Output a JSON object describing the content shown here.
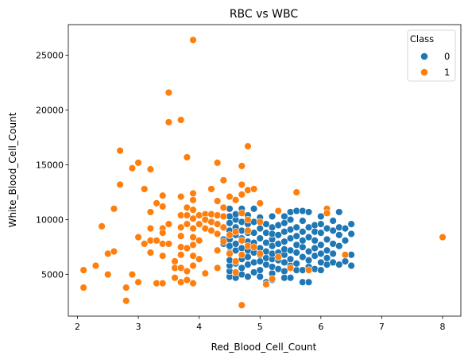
{
  "chart_data": {
    "type": "scatter",
    "title": "RBC vs WBC",
    "xlabel": "Red_Blood_Cell_Count",
    "ylabel": "White_Blood_Cell_Count",
    "xlim": [
      1.85,
      8.3
    ],
    "ylim": [
      1200,
      27800
    ],
    "xticks": [
      2,
      3,
      4,
      5,
      6,
      7,
      8
    ],
    "yticks": [
      5000,
      10000,
      15000,
      20000,
      25000
    ],
    "grid": false,
    "legend": {
      "title": "Class",
      "placement": "top-right",
      "entries": [
        {
          "label": "0",
          "color": "#1f77b4"
        },
        {
          "label": "1",
          "color": "#ff7f0e"
        }
      ]
    },
    "series": [
      {
        "class": "0",
        "color": "#1f77b4",
        "points": [
          [
            4.4,
            7800
          ],
          [
            4.4,
            8200
          ],
          [
            4.5,
            4800
          ],
          [
            4.5,
            5300
          ],
          [
            4.5,
            5800
          ],
          [
            4.5,
            6300
          ],
          [
            4.5,
            7000
          ],
          [
            4.5,
            7600
          ],
          [
            4.5,
            8200
          ],
          [
            4.5,
            9000
          ],
          [
            4.5,
            9700
          ],
          [
            4.5,
            10300
          ],
          [
            4.5,
            11000
          ],
          [
            4.6,
            4700
          ],
          [
            4.6,
            6000
          ],
          [
            4.6,
            7200
          ],
          [
            4.6,
            7800
          ],
          [
            4.6,
            8600
          ],
          [
            4.6,
            9300
          ],
          [
            4.6,
            10000
          ],
          [
            4.6,
            10500
          ],
          [
            4.7,
            5000
          ],
          [
            4.7,
            5600
          ],
          [
            4.7,
            6400
          ],
          [
            4.7,
            7400
          ],
          [
            4.7,
            8300
          ],
          [
            4.7,
            9000
          ],
          [
            4.7,
            9800
          ],
          [
            4.7,
            11000
          ],
          [
            4.8,
            4800
          ],
          [
            4.8,
            5900
          ],
          [
            4.8,
            6600
          ],
          [
            4.8,
            7200
          ],
          [
            4.8,
            8000
          ],
          [
            4.8,
            8800
          ],
          [
            4.8,
            9600
          ],
          [
            4.8,
            10400
          ],
          [
            4.9,
            5200
          ],
          [
            4.9,
            6100
          ],
          [
            4.9,
            7000
          ],
          [
            4.9,
            7900
          ],
          [
            4.9,
            8800
          ],
          [
            4.9,
            9800
          ],
          [
            4.9,
            11000
          ],
          [
            5.0,
            4800
          ],
          [
            5.0,
            5400
          ],
          [
            5.0,
            6200
          ],
          [
            5.0,
            6800
          ],
          [
            5.0,
            7400
          ],
          [
            5.0,
            8300
          ],
          [
            5.0,
            9200
          ],
          [
            5.0,
            10200
          ],
          [
            5.1,
            4300
          ],
          [
            5.1,
            5900
          ],
          [
            5.1,
            6500
          ],
          [
            5.1,
            7100
          ],
          [
            5.1,
            7900
          ],
          [
            5.1,
            8800
          ],
          [
            5.1,
            9600
          ],
          [
            5.2,
            4500
          ],
          [
            5.2,
            5100
          ],
          [
            5.2,
            5700
          ],
          [
            5.2,
            6400
          ],
          [
            5.2,
            6900
          ],
          [
            5.2,
            7600
          ],
          [
            5.2,
            8200
          ],
          [
            5.2,
            8700
          ],
          [
            5.2,
            9300
          ],
          [
            5.2,
            10300
          ],
          [
            5.3,
            5500
          ],
          [
            5.3,
            6300
          ],
          [
            5.3,
            7000
          ],
          [
            5.3,
            7800
          ],
          [
            5.3,
            8600
          ],
          [
            5.3,
            9500
          ],
          [
            5.3,
            10800
          ],
          [
            5.4,
            4700
          ],
          [
            5.4,
            5300
          ],
          [
            5.4,
            6100
          ],
          [
            5.4,
            6800
          ],
          [
            5.4,
            7300
          ],
          [
            5.4,
            8000
          ],
          [
            5.4,
            8900
          ],
          [
            5.4,
            9700
          ],
          [
            5.4,
            10300
          ],
          [
            5.5,
            4700
          ],
          [
            5.5,
            5800
          ],
          [
            5.5,
            6400
          ],
          [
            5.5,
            7200
          ],
          [
            5.5,
            8300
          ],
          [
            5.5,
            9100
          ],
          [
            5.5,
            10000
          ],
          [
            5.5,
            10700
          ],
          [
            5.6,
            5400
          ],
          [
            5.6,
            6000
          ],
          [
            5.6,
            7000
          ],
          [
            5.6,
            7700
          ],
          [
            5.6,
            8500
          ],
          [
            5.6,
            9300
          ],
          [
            5.6,
            10800
          ],
          [
            5.7,
            4300
          ],
          [
            5.7,
            5400
          ],
          [
            5.7,
            6600
          ],
          [
            5.7,
            7500
          ],
          [
            5.7,
            8100
          ],
          [
            5.7,
            8900
          ],
          [
            5.7,
            9900
          ],
          [
            5.7,
            10800
          ],
          [
            5.8,
            4300
          ],
          [
            5.8,
            5700
          ],
          [
            5.8,
            6300
          ],
          [
            5.8,
            7100
          ],
          [
            5.8,
            8400
          ],
          [
            5.8,
            9300
          ],
          [
            5.8,
            10700
          ],
          [
            5.9,
            5500
          ],
          [
            5.9,
            6700
          ],
          [
            5.9,
            7400
          ],
          [
            5.9,
            8100
          ],
          [
            5.9,
            8900
          ],
          [
            5.9,
            9500
          ],
          [
            6.0,
            5400
          ],
          [
            6.0,
            6100
          ],
          [
            6.0,
            6900
          ],
          [
            6.0,
            7700
          ],
          [
            6.0,
            8800
          ],
          [
            6.0,
            9600
          ],
          [
            6.0,
            10300
          ],
          [
            6.1,
            5900
          ],
          [
            6.1,
            6500
          ],
          [
            6.1,
            7200
          ],
          [
            6.1,
            8200
          ],
          [
            6.1,
            9200
          ],
          [
            6.1,
            10600
          ],
          [
            6.2,
            6100
          ],
          [
            6.2,
            6900
          ],
          [
            6.2,
            7800
          ],
          [
            6.2,
            9000
          ],
          [
            6.2,
            9900
          ],
          [
            6.3,
            5900
          ],
          [
            6.3,
            7600
          ],
          [
            6.3,
            8600
          ],
          [
            6.3,
            9300
          ],
          [
            6.3,
            10700
          ],
          [
            6.4,
            6200
          ],
          [
            6.4,
            8100
          ],
          [
            6.4,
            9200
          ],
          [
            6.5,
            5800
          ],
          [
            6.5,
            6800
          ],
          [
            6.5,
            8700
          ],
          [
            6.5,
            9600
          ]
        ]
      },
      {
        "class": "1",
        "color": "#ff7f0e",
        "points": [
          [
            2.1,
            5400
          ],
          [
            2.1,
            3800
          ],
          [
            2.3,
            5800
          ],
          [
            2.4,
            9400
          ],
          [
            2.5,
            6900
          ],
          [
            2.5,
            5000
          ],
          [
            2.6,
            11000
          ],
          [
            2.6,
            7100
          ],
          [
            2.7,
            16300
          ],
          [
            2.7,
            13200
          ],
          [
            2.8,
            3800
          ],
          [
            2.8,
            2600
          ],
          [
            2.9,
            14700
          ],
          [
            2.9,
            5000
          ],
          [
            3.0,
            15200
          ],
          [
            3.0,
            8400
          ],
          [
            3.0,
            4300
          ],
          [
            3.1,
            12800
          ],
          [
            3.1,
            7800
          ],
          [
            3.2,
            14600
          ],
          [
            3.2,
            10700
          ],
          [
            3.2,
            9200
          ],
          [
            3.2,
            8100
          ],
          [
            3.2,
            7000
          ],
          [
            3.3,
            11500
          ],
          [
            3.3,
            8100
          ],
          [
            3.3,
            4200
          ],
          [
            3.4,
            12200
          ],
          [
            3.4,
            11200
          ],
          [
            3.4,
            9200
          ],
          [
            3.4,
            8800
          ],
          [
            3.4,
            7800
          ],
          [
            3.4,
            6700
          ],
          [
            3.4,
            4200
          ],
          [
            3.5,
            21600
          ],
          [
            3.5,
            18900
          ],
          [
            3.5,
            9600
          ],
          [
            3.5,
            7800
          ],
          [
            3.6,
            6200
          ],
          [
            3.6,
            5600
          ],
          [
            3.6,
            4700
          ],
          [
            3.7,
            19100
          ],
          [
            3.7,
            12100
          ],
          [
            3.7,
            10400
          ],
          [
            3.7,
            9300
          ],
          [
            3.7,
            8500
          ],
          [
            3.7,
            7500
          ],
          [
            3.7,
            6800
          ],
          [
            3.7,
            5600
          ],
          [
            3.7,
            4300
          ],
          [
            3.8,
            15700
          ],
          [
            3.8,
            11100
          ],
          [
            3.8,
            10400
          ],
          [
            3.8,
            9600
          ],
          [
            3.8,
            7400
          ],
          [
            3.8,
            5300
          ],
          [
            3.8,
            4500
          ],
          [
            3.9,
            26400
          ],
          [
            3.9,
            12400
          ],
          [
            3.9,
            11800
          ],
          [
            3.9,
            10900
          ],
          [
            3.9,
            10100
          ],
          [
            3.9,
            9200
          ],
          [
            3.9,
            8400
          ],
          [
            3.9,
            7700
          ],
          [
            3.9,
            6700
          ],
          [
            3.9,
            5800
          ],
          [
            3.9,
            4200
          ],
          [
            4.0,
            10400
          ],
          [
            4.0,
            9600
          ],
          [
            4.0,
            8100
          ],
          [
            4.0,
            6400
          ],
          [
            4.1,
            10500
          ],
          [
            4.1,
            10000
          ],
          [
            4.1,
            9200
          ],
          [
            4.1,
            5100
          ],
          [
            4.2,
            12800
          ],
          [
            4.2,
            10500
          ],
          [
            4.2,
            9800
          ],
          [
            4.2,
            9000
          ],
          [
            4.3,
            15200
          ],
          [
            4.3,
            11700
          ],
          [
            4.3,
            10400
          ],
          [
            4.3,
            9600
          ],
          [
            4.3,
            8700
          ],
          [
            4.3,
            7200
          ],
          [
            4.3,
            5600
          ],
          [
            4.4,
            13600
          ],
          [
            4.4,
            11100
          ],
          [
            4.4,
            10300
          ],
          [
            4.4,
            9300
          ],
          [
            4.4,
            8000
          ],
          [
            4.5,
            12100
          ],
          [
            4.5,
            8600
          ],
          [
            4.5,
            6900
          ],
          [
            4.6,
            11800
          ],
          [
            4.6,
            8900
          ],
          [
            4.6,
            6200
          ],
          [
            4.6,
            5200
          ],
          [
            4.7,
            14900
          ],
          [
            4.7,
            13200
          ],
          [
            4.7,
            12300
          ],
          [
            4.7,
            10600
          ],
          [
            4.7,
            8100
          ],
          [
            4.7,
            6800
          ],
          [
            4.7,
            2200
          ],
          [
            4.8,
            16700
          ],
          [
            4.8,
            12700
          ],
          [
            4.8,
            10000
          ],
          [
            4.8,
            9000
          ],
          [
            4.8,
            7600
          ],
          [
            4.9,
            12800
          ],
          [
            4.9,
            7500
          ],
          [
            5.0,
            11500
          ],
          [
            5.0,
            9800
          ],
          [
            5.0,
            6900
          ],
          [
            5.1,
            4100
          ],
          [
            5.2,
            4600
          ],
          [
            5.3,
            10800
          ],
          [
            5.3,
            6600
          ],
          [
            5.5,
            5600
          ],
          [
            5.6,
            12500
          ],
          [
            5.8,
            5400
          ],
          [
            6.1,
            11000
          ],
          [
            6.1,
            10600
          ],
          [
            6.4,
            6800
          ],
          [
            8.0,
            8400
          ]
        ]
      }
    ]
  }
}
